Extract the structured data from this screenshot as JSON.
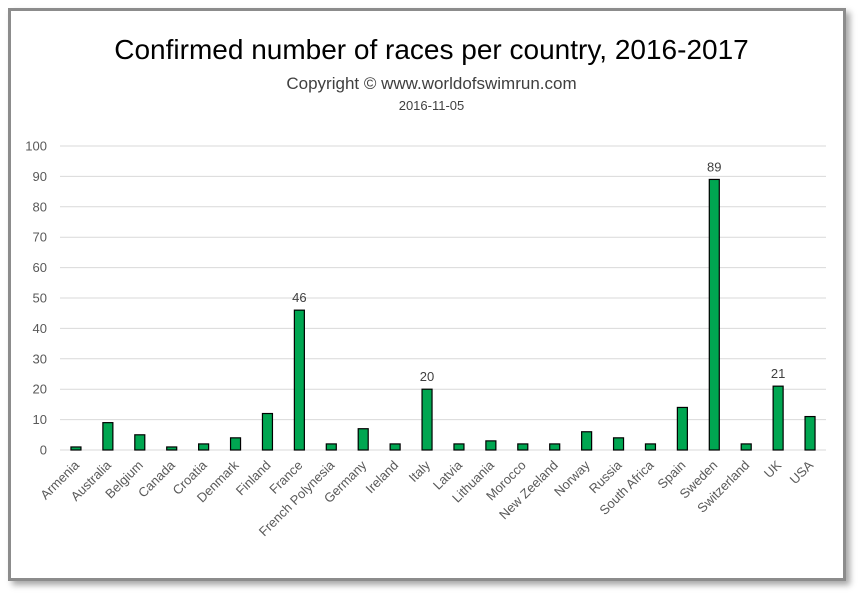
{
  "chart_data": {
    "type": "bar",
    "title": "Confirmed number of races per country, 2016-2017",
    "subtitle": "Copyright © www.worldofswimrun.com",
    "date": "2016-11-05",
    "categories": [
      "Armenia",
      "Australia",
      "Belgium",
      "Canada",
      "Croatia",
      "Denmark",
      "Finland",
      "France",
      "French Polynesia",
      "Germany",
      "Ireland",
      "Italy",
      "Latvia",
      "Lithuania",
      "Morocco",
      "New Zeeland",
      "Norway",
      "Russia",
      "South Africa",
      "Spain",
      "Sweden",
      "Switzerland",
      "UK",
      "USA"
    ],
    "values": [
      1,
      9,
      5,
      1,
      2,
      4,
      12,
      46,
      2,
      7,
      2,
      20,
      2,
      3,
      2,
      2,
      6,
      4,
      2,
      14,
      89,
      2,
      21,
      11
    ],
    "data_labels": {
      "France": "46",
      "Italy": "20",
      "Sweden": "89",
      "UK": "21"
    },
    "ylim": [
      0,
      100
    ],
    "yticks": [
      0,
      10,
      20,
      30,
      40,
      50,
      60,
      70,
      80,
      90,
      100
    ],
    "grid": true,
    "legend": "none",
    "colors": {
      "bar_fill": "#00a651",
      "bar_stroke": "#000000",
      "grid": "#d9d9d9"
    }
  }
}
